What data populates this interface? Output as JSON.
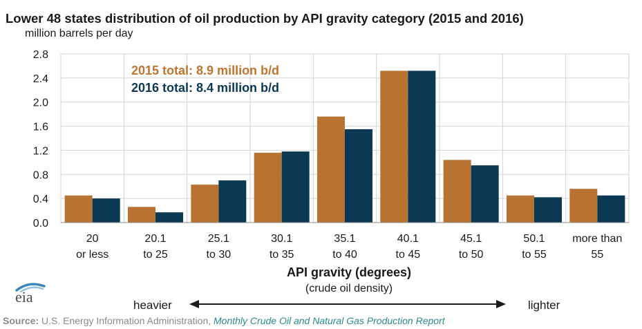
{
  "header": {
    "title": "Lower 48 states distribution of oil production by API gravity category (2015 and 2016)",
    "subtitle": "million barrels per day"
  },
  "chart_data": {
    "type": "bar",
    "categories": [
      "20 or less",
      "20.1 to 25",
      "25.1 to 30",
      "30.1 to 35",
      "35.1 to 40",
      "40.1 to 45",
      "45.1 to 50",
      "50.1 to 55",
      "more than 55"
    ],
    "category_lines": [
      [
        "20",
        "or less"
      ],
      [
        "20.1",
        "to 25"
      ],
      [
        "25.1",
        "to 30"
      ],
      [
        "30.1",
        "to 35"
      ],
      [
        "35.1",
        "to 40"
      ],
      [
        "40.1",
        "to 45"
      ],
      [
        "45.1",
        "to 50"
      ],
      [
        "50.1",
        "to 55"
      ],
      [
        "more than",
        "55"
      ]
    ],
    "series": [
      {
        "name": "2015",
        "color": "#b87333",
        "values": [
          0.45,
          0.26,
          0.63,
          1.16,
          1.76,
          2.52,
          1.04,
          0.45,
          0.56
        ]
      },
      {
        "name": "2016",
        "color": "#0b3954",
        "values": [
          0.4,
          0.17,
          0.7,
          1.18,
          1.55,
          2.52,
          0.95,
          0.42,
          0.45
        ]
      }
    ],
    "ylim": [
      0,
      2.8
    ],
    "yticks": [
      "0.0",
      "0.4",
      "0.8",
      "1.2",
      "1.6",
      "2.0",
      "2.4",
      "2.8"
    ],
    "grid": true,
    "xlabel": "API gravity (degrees)",
    "xlabel_sub": "(crude oil density)",
    "annotations": [
      {
        "text": "2015 total: 8.9 million b/d",
        "color": "#c0752f"
      },
      {
        "text": "2016 total: 8.4 million b/d",
        "color": "#0b3954"
      }
    ],
    "arrow": {
      "left_label": "heavier",
      "right_label": "lighter"
    }
  },
  "logo": {
    "text": "eia"
  },
  "footer": {
    "source_label": "Source:",
    "source_text": "U.S. Energy Information Administration,",
    "source_link": "Monthly Crude Oil and Natural Gas Production Report"
  }
}
